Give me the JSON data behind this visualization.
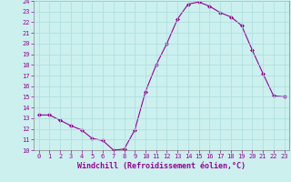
{
  "x": [
    0,
    1,
    2,
    3,
    4,
    5,
    6,
    7,
    8,
    9,
    10,
    11,
    12,
    13,
    14,
    15,
    16,
    17,
    18,
    19,
    20,
    21,
    22,
    23
  ],
  "y": [
    13.3,
    13.3,
    12.8,
    12.3,
    11.9,
    11.1,
    10.9,
    10.0,
    10.1,
    11.9,
    15.5,
    18.0,
    20.0,
    22.3,
    23.7,
    23.9,
    23.5,
    22.9,
    22.5,
    21.7,
    19.4,
    17.2,
    15.1,
    15.0
  ],
  "line_color": "#990099",
  "marker": "D",
  "marker_size": 2.0,
  "bg_color": "#cbf0ee",
  "grid_color": "#aadddd",
  "xlabel": "Windchill (Refroidissement éolien,°C)",
  "xlabel_color": "#990099",
  "ylim": [
    10,
    24
  ],
  "xlim": [
    -0.5,
    23.5
  ],
  "yticks": [
    10,
    11,
    12,
    13,
    14,
    15,
    16,
    17,
    18,
    19,
    20,
    21,
    22,
    23,
    24
  ],
  "xticks": [
    0,
    1,
    2,
    3,
    4,
    5,
    6,
    7,
    8,
    9,
    10,
    11,
    12,
    13,
    14,
    15,
    16,
    17,
    18,
    19,
    20,
    21,
    22,
    23
  ],
  "tick_color": "#990099",
  "spine_color": "#888888",
  "font_family": "monospace",
  "tick_fontsize": 5.0,
  "xlabel_fontsize": 6.0
}
